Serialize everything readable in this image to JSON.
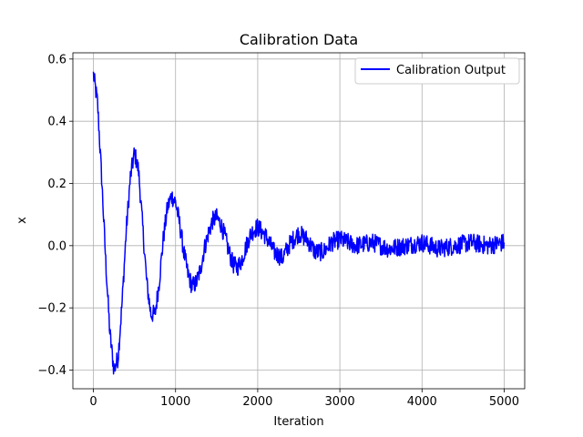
{
  "chart_data": {
    "type": "line",
    "title": "Calibration Data",
    "xlabel": "Iteration",
    "ylabel": "x",
    "xlim": [
      -250,
      5250
    ],
    "ylim": [
      -0.46,
      0.62
    ],
    "x_ticks": [
      0,
      1000,
      2000,
      3000,
      4000,
      5000
    ],
    "x_tick_labels": [
      "0",
      "1000",
      "2000",
      "3000",
      "4000",
      "5000"
    ],
    "y_ticks": [
      -0.4,
      -0.2,
      0.0,
      0.2,
      0.4,
      0.6
    ],
    "y_tick_labels": [
      "−0.4",
      "−0.2",
      "0.0",
      "0.2",
      "0.4",
      "0.6"
    ],
    "grid": true,
    "legend_position": "top-right",
    "series": [
      {
        "name": "Calibration Output",
        "color": "#0000ff",
        "x": [
          0,
          50,
          100,
          150,
          200,
          250,
          300,
          350,
          400,
          450,
          500,
          550,
          600,
          650,
          700,
          750,
          800,
          850,
          900,
          950,
          1000,
          1050,
          1100,
          1150,
          1200,
          1250,
          1300,
          1350,
          1400,
          1450,
          1500,
          1550,
          1600,
          1650,
          1700,
          1750,
          1800,
          1850,
          1900,
          1950,
          2000,
          2100,
          2200,
          2300,
          2400,
          2500,
          2600,
          2700,
          2800,
          2900,
          3000,
          3200,
          3400,
          3600,
          3800,
          4000,
          4200,
          4400,
          4600,
          4800,
          5000
        ],
        "y": [
          0.55,
          0.46,
          0.22,
          -0.05,
          -0.28,
          -0.4,
          -0.36,
          -0.18,
          0.05,
          0.22,
          0.3,
          0.24,
          0.06,
          -0.12,
          -0.22,
          -0.22,
          -0.12,
          0.02,
          0.12,
          0.16,
          0.14,
          0.07,
          -0.02,
          -0.09,
          -0.13,
          -0.12,
          -0.08,
          -0.01,
          0.04,
          0.08,
          0.09,
          0.07,
          0.03,
          -0.02,
          -0.06,
          -0.07,
          -0.05,
          -0.01,
          0.03,
          0.05,
          0.06,
          0.03,
          -0.02,
          -0.04,
          0.01,
          0.04,
          0.02,
          -0.02,
          -0.02,
          0.01,
          0.02,
          0.0,
          0.01,
          -0.01,
          0.0,
          0.01,
          -0.01,
          0.0,
          0.01,
          0.0,
          0.01
        ]
      }
    ]
  }
}
